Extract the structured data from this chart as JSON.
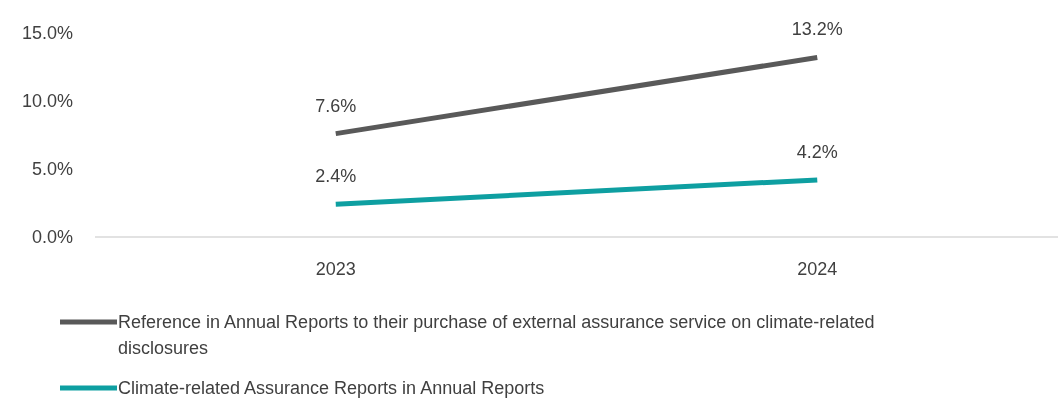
{
  "chart_data": {
    "type": "line",
    "categories": [
      "2023",
      "2024"
    ],
    "series": [
      {
        "name": "Reference in Annual Reports to their purchase of external assurance service on climate-related disclosures",
        "color": "#595959",
        "values": [
          7.6,
          13.2
        ],
        "value_labels": [
          "7.6%",
          "13.2%"
        ]
      },
      {
        "name": "Climate-related Assurance Reports in Annual Reports",
        "color": "#0e9fa1",
        "values": [
          2.4,
          4.2
        ],
        "value_labels": [
          "2.4%",
          "4.2%"
        ]
      }
    ],
    "ylim": [
      0,
      15
    ],
    "yticks": [
      {
        "value": 0,
        "label": "0.0%"
      },
      {
        "value": 5,
        "label": "5.0%"
      },
      {
        "value": 10,
        "label": "10.0%"
      },
      {
        "value": 15,
        "label": "15.0%"
      }
    ],
    "grid": false,
    "legend": "bottom",
    "marker": "none",
    "line_style": "solid"
  }
}
